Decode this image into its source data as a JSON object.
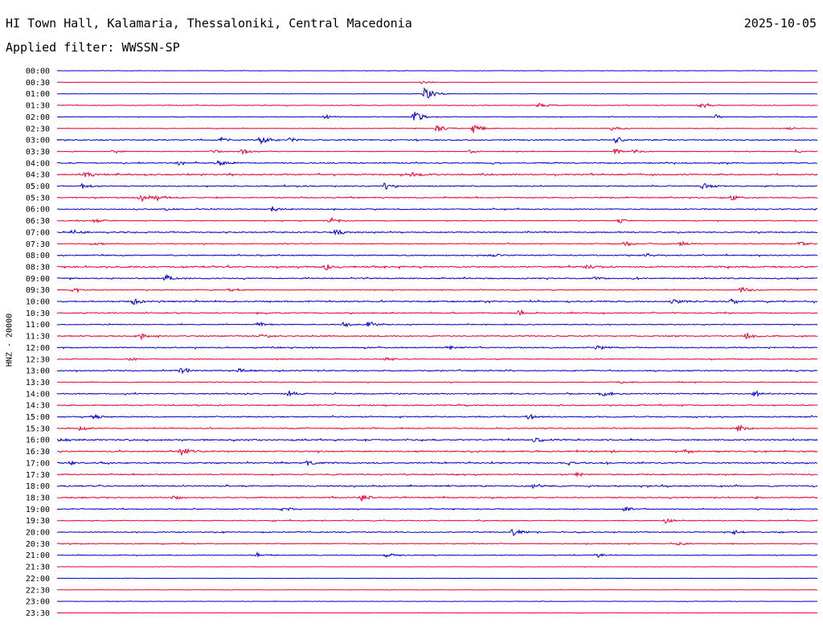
{
  "header": {
    "station": "HI Town Hall, Kalamaria, Thessaloniki, Central Macedonia",
    "date": "2025-10-05",
    "filter": "Applied filter: WWSSN-SP",
    "channel_label": "HNZ - 20000"
  },
  "colors": {
    "blue_trace": "#0000cc",
    "red_trace": "#ee0033",
    "text": "#000000"
  },
  "chart_data": {
    "type": "line",
    "subtype": "helicorder",
    "ylabel": "HNZ - 20000",
    "row_interval_minutes": 30,
    "row_labels": [
      "00:00",
      "00:30",
      "01:00",
      "01:30",
      "02:00",
      "02:30",
      "03:00",
      "03:30",
      "04:00",
      "04:30",
      "05:00",
      "05:30",
      "06:00",
      "06:30",
      "07:00",
      "07:30",
      "08:00",
      "08:30",
      "09:00",
      "09:30",
      "10:00",
      "10:30",
      "11:00",
      "11:30",
      "12:00",
      "12:30",
      "13:00",
      "13:30",
      "14:00",
      "14:30",
      "15:00",
      "15:30",
      "16:00",
      "16:30",
      "17:00",
      "17:30",
      "18:00",
      "18:30",
      "19:00",
      "19:30",
      "20:00",
      "20:30",
      "21:00",
      "21:30",
      "22:00",
      "22:30",
      "23:00",
      "23:30"
    ],
    "row_colors": [
      "blue",
      "red"
    ],
    "noise_level": [
      0.2,
      0.15,
      0.2,
      0.35,
      0.35,
      0.35,
      0.6,
      0.35,
      0.6,
      0.7,
      0.6,
      0.55,
      0.55,
      0.45,
      0.6,
      0.45,
      0.6,
      0.8,
      0.6,
      0.45,
      0.7,
      0.6,
      0.45,
      0.6,
      0.6,
      0.45,
      0.6,
      0.45,
      0.6,
      0.6,
      0.6,
      0.5,
      0.7,
      0.7,
      0.7,
      0.6,
      0.7,
      0.6,
      0.5,
      0.5,
      0.5,
      0.5,
      0.4,
      0.2,
      0.2,
      0.2,
      0.2,
      0.2
    ],
    "events": [
      {
        "row": 1,
        "minute": 14.4,
        "amp": 2
      },
      {
        "row": 2,
        "minute": 14.5,
        "amp": 8
      },
      {
        "row": 3,
        "minute": 19.0,
        "amp": 3
      },
      {
        "row": 3,
        "minute": 25.4,
        "amp": 4
      },
      {
        "row": 4,
        "minute": 10.5,
        "amp": 3
      },
      {
        "row": 4,
        "minute": 14.1,
        "amp": 7
      },
      {
        "row": 4,
        "minute": 26.0,
        "amp": 2
      },
      {
        "row": 5,
        "minute": 15.0,
        "amp": 4
      },
      {
        "row": 5,
        "minute": 16.4,
        "amp": 6
      },
      {
        "row": 5,
        "minute": 21.9,
        "amp": 4
      },
      {
        "row": 5,
        "minute": 28.9,
        "amp": 2
      },
      {
        "row": 6,
        "minute": 6.5,
        "amp": 3
      },
      {
        "row": 6,
        "minute": 8.0,
        "amp": 5
      },
      {
        "row": 6,
        "minute": 9.2,
        "amp": 3
      },
      {
        "row": 6,
        "minute": 22.0,
        "amp": 5
      },
      {
        "row": 7,
        "minute": 2.2,
        "amp": 3
      },
      {
        "row": 7,
        "minute": 6.1,
        "amp": 3
      },
      {
        "row": 7,
        "minute": 7.3,
        "amp": 4
      },
      {
        "row": 7,
        "minute": 16.3,
        "amp": 2
      },
      {
        "row": 7,
        "minute": 22.0,
        "amp": 4
      },
      {
        "row": 7,
        "minute": 22.7,
        "amp": 3
      },
      {
        "row": 7,
        "minute": 29.2,
        "amp": 3
      },
      {
        "row": 8,
        "minute": 4.8,
        "amp": 3
      },
      {
        "row": 8,
        "minute": 6.4,
        "amp": 5
      },
      {
        "row": 9,
        "minute": 1.1,
        "amp": 4
      },
      {
        "row": 9,
        "minute": 14.0,
        "amp": 3
      },
      {
        "row": 9,
        "minute": 16.8,
        "amp": 3
      },
      {
        "row": 10,
        "minute": 1.0,
        "amp": 3
      },
      {
        "row": 10,
        "minute": 12.9,
        "amp": 5
      },
      {
        "row": 10,
        "minute": 25.5,
        "amp": 4
      },
      {
        "row": 11,
        "minute": 3.3,
        "amp": 5
      },
      {
        "row": 11,
        "minute": 3.9,
        "amp": 5
      },
      {
        "row": 11,
        "minute": 26.6,
        "amp": 4
      },
      {
        "row": 12,
        "minute": 4.3,
        "amp": 2
      },
      {
        "row": 12,
        "minute": 8.5,
        "amp": 3
      },
      {
        "row": 13,
        "minute": 1.5,
        "amp": 3
      },
      {
        "row": 13,
        "minute": 10.8,
        "amp": 4
      },
      {
        "row": 13,
        "minute": 22.2,
        "amp": 3
      },
      {
        "row": 14,
        "minute": 0.6,
        "amp": 3
      },
      {
        "row": 14,
        "minute": 11.0,
        "amp": 4
      },
      {
        "row": 15,
        "minute": 1.3,
        "amp": 3
      },
      {
        "row": 15,
        "minute": 22.4,
        "amp": 3
      },
      {
        "row": 15,
        "minute": 24.6,
        "amp": 3
      },
      {
        "row": 15,
        "minute": 29.3,
        "amp": 3
      },
      {
        "row": 16,
        "minute": 17.1,
        "amp": 3
      },
      {
        "row": 16,
        "minute": 23.2,
        "amp": 3
      },
      {
        "row": 17,
        "minute": 10.6,
        "amp": 4
      },
      {
        "row": 17,
        "minute": 20.9,
        "amp": 3
      },
      {
        "row": 18,
        "minute": 4.3,
        "amp": 4
      },
      {
        "row": 18,
        "minute": 21.2,
        "amp": 3
      },
      {
        "row": 19,
        "minute": 0.6,
        "amp": 3
      },
      {
        "row": 19,
        "minute": 6.8,
        "amp": 3
      },
      {
        "row": 19,
        "minute": 27.0,
        "amp": 4
      },
      {
        "row": 20,
        "minute": 3.0,
        "amp": 4
      },
      {
        "row": 20,
        "minute": 24.3,
        "amp": 4
      },
      {
        "row": 20,
        "minute": 26.6,
        "amp": 3
      },
      {
        "row": 21,
        "minute": 18.2,
        "amp": 4
      },
      {
        "row": 22,
        "minute": 7.9,
        "amp": 3
      },
      {
        "row": 22,
        "minute": 11.3,
        "amp": 3
      },
      {
        "row": 22,
        "minute": 12.3,
        "amp": 4
      },
      {
        "row": 23,
        "minute": 3.3,
        "amp": 4
      },
      {
        "row": 23,
        "minute": 8.1,
        "amp": 4
      },
      {
        "row": 23,
        "minute": 27.2,
        "amp": 4
      },
      {
        "row": 24,
        "minute": 8.3,
        "amp": 2
      },
      {
        "row": 24,
        "minute": 15.4,
        "amp": 3
      },
      {
        "row": 24,
        "minute": 21.3,
        "amp": 3
      },
      {
        "row": 25,
        "minute": 2.9,
        "amp": 3
      },
      {
        "row": 25,
        "minute": 13.0,
        "amp": 3
      },
      {
        "row": 26,
        "minute": 4.9,
        "amp": 4
      },
      {
        "row": 26,
        "minute": 7.2,
        "amp": 3
      },
      {
        "row": 27,
        "minute": 22.2,
        "amp": 3
      },
      {
        "row": 28,
        "minute": 9.1,
        "amp": 4
      },
      {
        "row": 28,
        "minute": 21.5,
        "amp": 4
      },
      {
        "row": 28,
        "minute": 27.5,
        "amp": 4
      },
      {
        "row": 30,
        "minute": 1.4,
        "amp": 3
      },
      {
        "row": 30,
        "minute": 18.6,
        "amp": 4
      },
      {
        "row": 31,
        "minute": 0.9,
        "amp": 3
      },
      {
        "row": 31,
        "minute": 26.9,
        "amp": 5
      },
      {
        "row": 32,
        "minute": 0.1,
        "amp": 3
      },
      {
        "row": 32,
        "minute": 18.8,
        "amp": 4
      },
      {
        "row": 33,
        "minute": 4.9,
        "amp": 5
      },
      {
        "row": 33,
        "minute": 24.8,
        "amp": 3
      },
      {
        "row": 34,
        "minute": 0.5,
        "amp": 3
      },
      {
        "row": 34,
        "minute": 9.9,
        "amp": 3
      },
      {
        "row": 34,
        "minute": 20.2,
        "amp": 3
      },
      {
        "row": 35,
        "minute": 20.5,
        "amp": 3
      },
      {
        "row": 36,
        "minute": 18.8,
        "amp": 3
      },
      {
        "row": 37,
        "minute": 4.6,
        "amp": 3
      },
      {
        "row": 37,
        "minute": 12.0,
        "amp": 4
      },
      {
        "row": 38,
        "minute": 8.9,
        "amp": 3
      },
      {
        "row": 38,
        "minute": 22.4,
        "amp": 3
      },
      {
        "row": 39,
        "minute": 24.0,
        "amp": 4
      },
      {
        "row": 40,
        "minute": 18.0,
        "amp": 5
      },
      {
        "row": 40,
        "minute": 26.7,
        "amp": 3
      },
      {
        "row": 41,
        "minute": 24.5,
        "amp": 3
      },
      {
        "row": 42,
        "minute": 7.9,
        "amp": 3
      },
      {
        "row": 42,
        "minute": 13.0,
        "amp": 3
      },
      {
        "row": 42,
        "minute": 21.3,
        "amp": 3
      }
    ]
  }
}
